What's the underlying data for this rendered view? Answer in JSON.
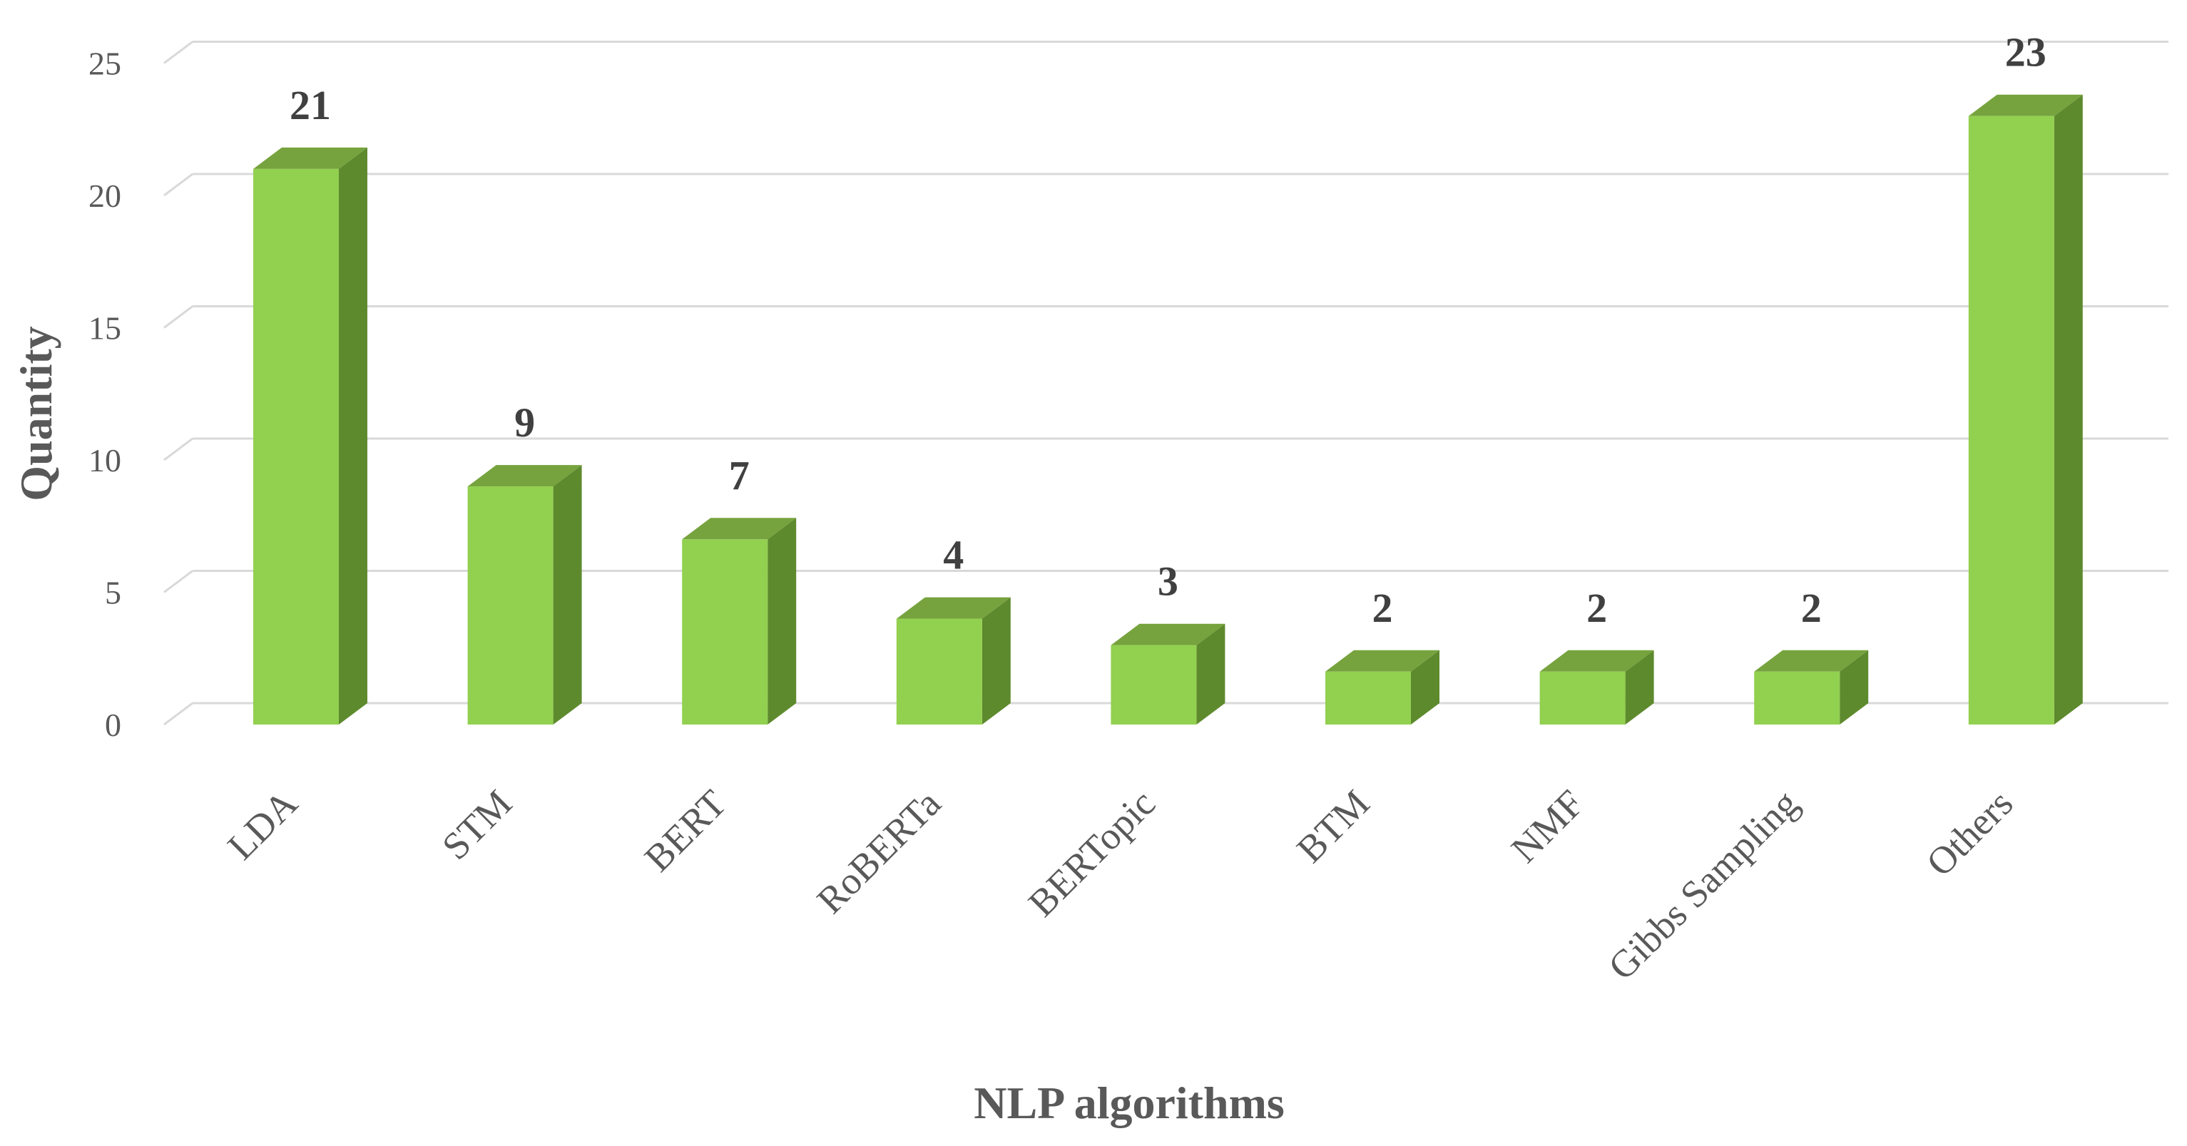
{
  "chart_data": {
    "type": "bar",
    "style": "3d-column",
    "categories": [
      "LDA",
      "STM",
      "BERT",
      "RoBERTa",
      "BERTopic",
      "BTM",
      "NMF",
      "Gibbs Sampling",
      "Others"
    ],
    "values": [
      21,
      9,
      7,
      4,
      3,
      2,
      2,
      2,
      23
    ],
    "data_labels": [
      "21",
      "9",
      "7",
      "4",
      "3",
      "2",
      "2",
      "2",
      "23"
    ],
    "xlabel": "NLP algorithms",
    "ylabel": "Quantity",
    "ylim": [
      0,
      25
    ],
    "yticks": [
      "0",
      "5",
      "10",
      "15",
      "20",
      "25"
    ],
    "grid": true,
    "legend": "none",
    "colors": {
      "bar_front": "#92D050",
      "bar_top": "#76A33D",
      "bar_side": "#5E8A2E",
      "grid": "#D9D9D9",
      "text": "#595959",
      "label": "#404040"
    }
  }
}
